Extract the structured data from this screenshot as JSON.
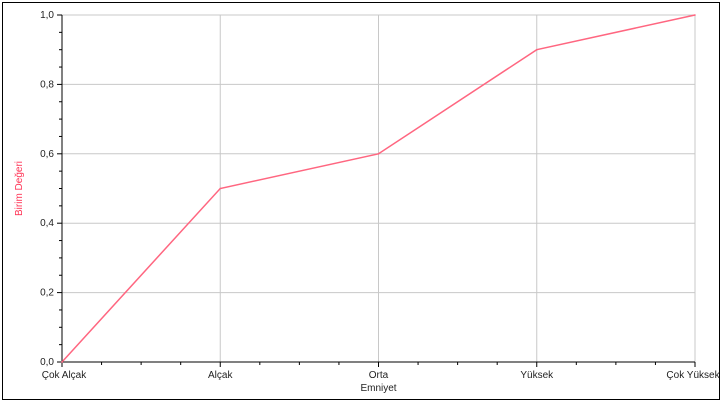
{
  "chart_data": {
    "type": "line",
    "title": "",
    "xlabel": "Emniyet",
    "ylabel": "Birim Değeri",
    "categories": [
      "Çok Alçak",
      "Alçak",
      "Orta",
      "Yüksek",
      "Çok Yüksek"
    ],
    "series": [
      {
        "values": [
          0.0,
          0.5,
          0.6,
          0.9,
          1.0
        ],
        "color": "#ff6680"
      }
    ],
    "ylim": [
      0.0,
      1.0
    ],
    "yticks": [
      0.0,
      0.2,
      0.4,
      0.6,
      0.8,
      1.0
    ],
    "ytick_labels": [
      "0,0",
      "0,2",
      "0,4",
      "0,6",
      "0,8",
      "1,0"
    ],
    "grid": true,
    "colors": {
      "ylabel": "#ff3355",
      "grid": "#c8c8c8",
      "axis": "#000000"
    }
  }
}
